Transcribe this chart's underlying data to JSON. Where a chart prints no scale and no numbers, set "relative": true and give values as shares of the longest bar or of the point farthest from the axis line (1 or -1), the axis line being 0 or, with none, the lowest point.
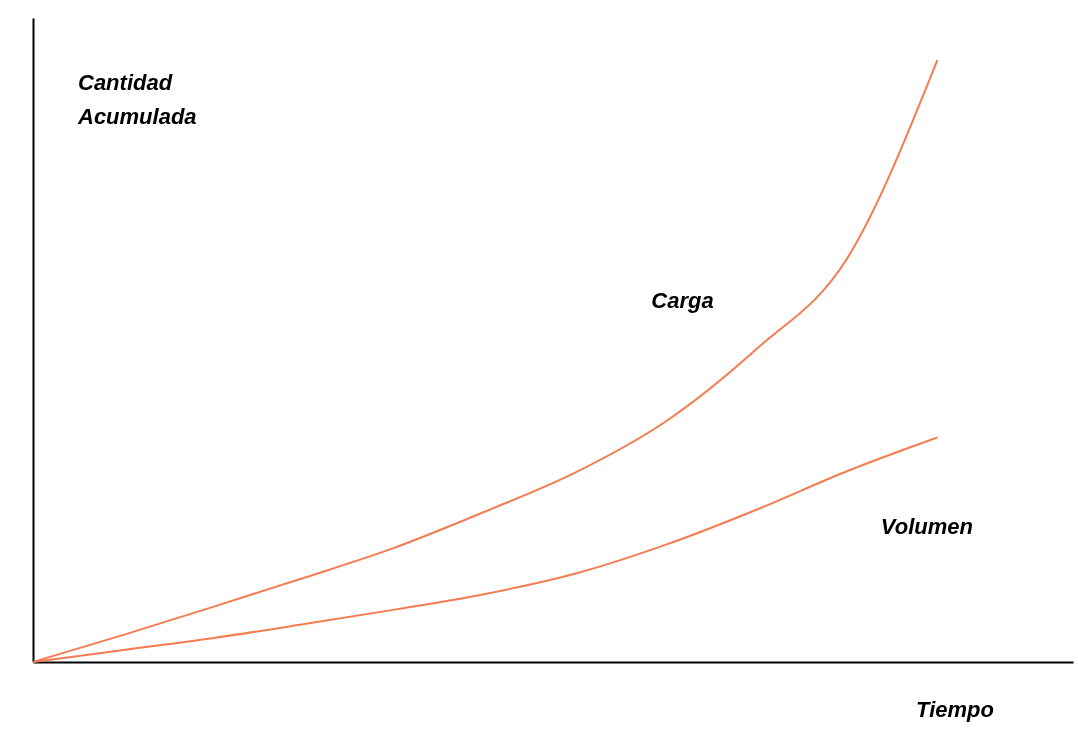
{
  "chart_data": {
    "type": "line",
    "relative": true,
    "xlabel": "Tiempo",
    "ylabel": "Cantidad Acumulada",
    "categories": [
      null,
      null,
      null,
      null,
      null,
      null,
      null,
      null,
      null,
      null,
      null
    ],
    "series": [
      {
        "name": "Carga",
        "color": "#f47c50",
        "values": [
          0,
          0.045,
          0.092,
          0.14,
          0.19,
          0.25,
          0.315,
          0.4,
          0.52,
          0.67,
          1.0
        ]
      },
      {
        "name": "Volumen",
        "color": "#f47c50",
        "values": [
          0,
          0.02,
          0.04,
          0.063,
          0.087,
          0.113,
          0.147,
          0.195,
          0.253,
          0.317,
          0.373
        ]
      }
    ],
    "grid": false,
    "legend": false,
    "marker": "none",
    "line_style": "solid"
  }
}
